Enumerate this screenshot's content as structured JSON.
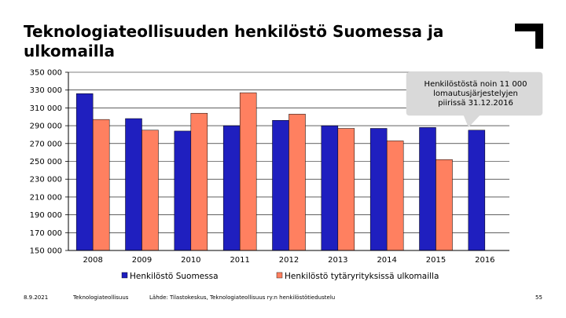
{
  "slide": {
    "title": "Teknologiateollisuuden henkilöstö  Suomessa ja\nulkomailla",
    "footer_date": "8.9.2021",
    "footer_org": "Teknologiateollisuus",
    "footer_source": "Lähde: Tilastokeskus, Teknologiateollisuus ry:n henkilöstötiedustelu",
    "page_number": "55"
  },
  "colors": {
    "finland": "#1f1fbf",
    "abroad": "#ff8060",
    "callout_bg": "#d9d9d9",
    "grid": "#000000"
  },
  "chart_data": {
    "type": "bar",
    "categories": [
      "2008",
      "2009",
      "2010",
      "2011",
      "2012",
      "2013",
      "2014",
      "2015",
      "2016"
    ],
    "series": [
      {
        "name": "Henkilöstö Suomessa",
        "values": [
          326000,
          298000,
          284000,
          290000,
          296000,
          290000,
          287000,
          288000,
          285000
        ]
      },
      {
        "name": "Henkilöstö tytäryrityksissä ulkomailla",
        "values": [
          297000,
          285000,
          304000,
          327000,
          303000,
          287000,
          273000,
          252000,
          null
        ]
      }
    ],
    "ylim": [
      150000,
      350000
    ],
    "ytick_step": 20000,
    "ytick_labels": [
      "150 000",
      "170 000",
      "190 000",
      "210 000",
      "230 000",
      "250 000",
      "270 000",
      "290 000",
      "310 000",
      "330 000",
      "350 000"
    ],
    "grid": true,
    "legend_position": "bottom",
    "annotation": {
      "lines": [
        "Henkilöstöstä noin 11 000",
        "lomautusjärjestelyjen",
        "piirissä  31.12.2016"
      ],
      "target_category": "2016"
    }
  }
}
